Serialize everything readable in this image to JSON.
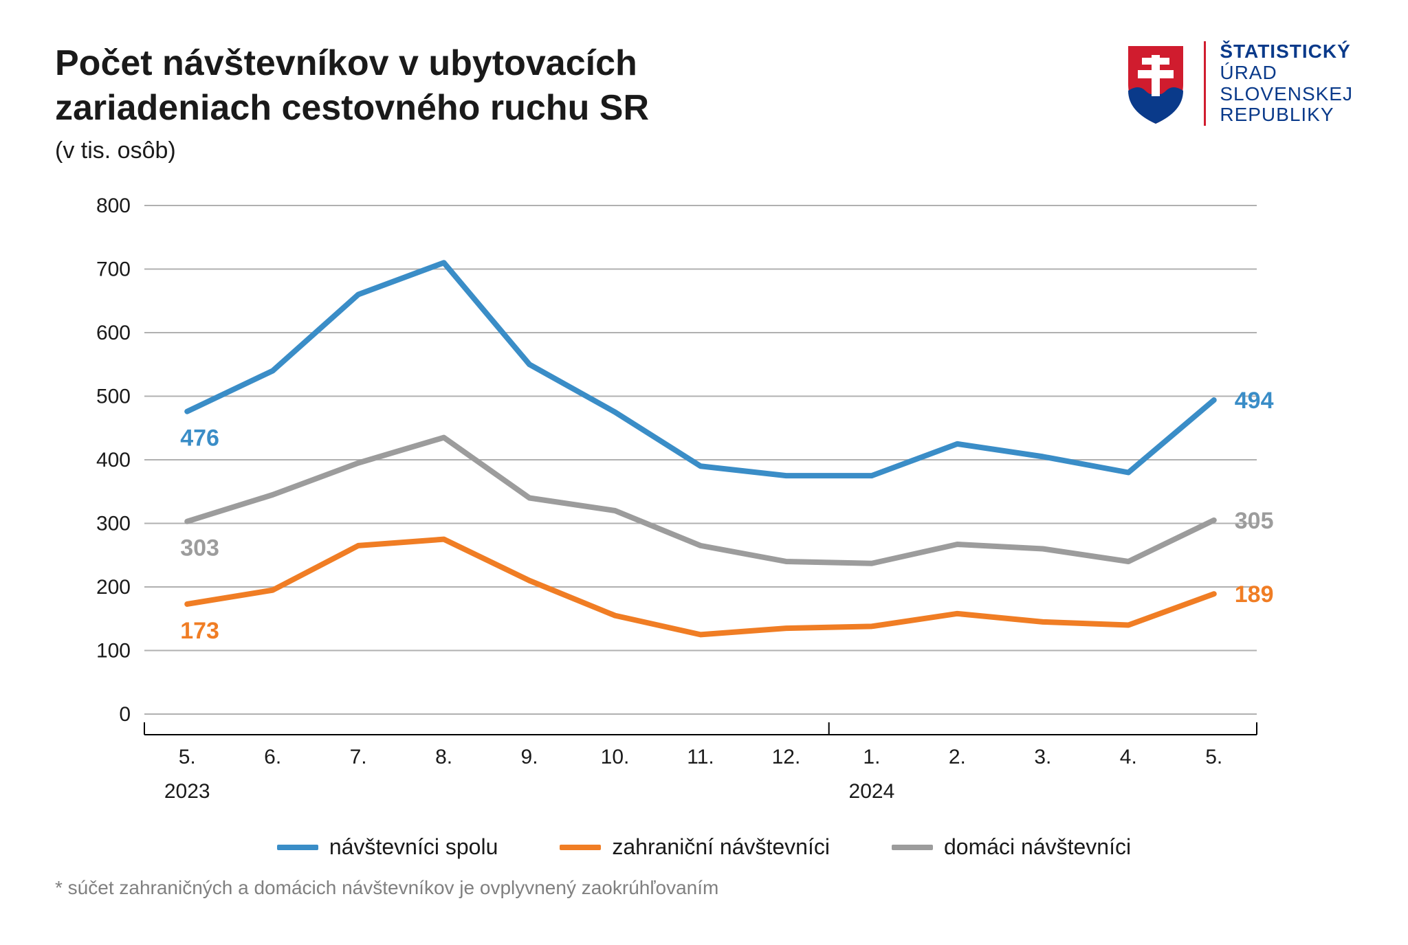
{
  "header": {
    "title_line1": "Počet návštevníkov v ubytovacích",
    "title_line2": "zariadeniach cestovného ruchu SR",
    "subtitle": "(v tis. osôb)"
  },
  "logo": {
    "line1": "ŠTATISTICKÝ",
    "line2": "ÚRAD",
    "line3": "SLOVENSKEJ",
    "line4": "REPUBLIKY",
    "shield_top_color": "#d01c2e",
    "shield_bottom_color": "#0a3a8a",
    "cross_color": "#ffffff",
    "text_color": "#0a3a8a",
    "divider_color": "#d01c2e"
  },
  "chart": {
    "type": "line",
    "background_color": "#ffffff",
    "grid_color": "#b0b0b0",
    "axis_color": "#000000",
    "ylim": [
      0,
      800
    ],
    "ytick_step": 100,
    "yticks": [
      0,
      100,
      200,
      300,
      400,
      500,
      600,
      700,
      800
    ],
    "x_categories": [
      "5.",
      "6.",
      "7.",
      "8.",
      "9.",
      "10.",
      "11.",
      "12.",
      "1.",
      "2.",
      "3.",
      "4.",
      "5."
    ],
    "x_year_groups": [
      {
        "label": "2023",
        "start_index": 0,
        "end_index": 7
      },
      {
        "label": "2024",
        "start_index": 8,
        "end_index": 12
      }
    ],
    "line_width": 8,
    "tick_fontsize": 30,
    "label_fontsize": 30,
    "value_label_fontsize": 34,
    "series": [
      {
        "key": "total",
        "label": "návštevníci spolu",
        "color": "#3a8dc7",
        "values": [
          476,
          540,
          660,
          710,
          550,
          475,
          390,
          375,
          375,
          425,
          405,
          380,
          494
        ],
        "start_label": "476",
        "end_label": "494"
      },
      {
        "key": "foreign",
        "label": "zahraniční návštevníci",
        "color": "#f07d24",
        "values": [
          173,
          195,
          265,
          275,
          210,
          155,
          125,
          135,
          138,
          158,
          145,
          140,
          189
        ],
        "start_label": "173",
        "end_label": "189"
      },
      {
        "key": "domestic",
        "label": "domáci návštevníci",
        "color": "#9c9c9c",
        "values": [
          303,
          345,
          395,
          435,
          340,
          320,
          265,
          240,
          237,
          267,
          260,
          240,
          305
        ],
        "start_label": "303",
        "end_label": "305"
      }
    ]
  },
  "legend": {
    "items": [
      {
        "label": "návštevníci spolu",
        "color": "#3a8dc7"
      },
      {
        "label": "zahraniční návštevníci",
        "color": "#f07d24"
      },
      {
        "label": "domáci návštevníci",
        "color": "#9c9c9c"
      }
    ]
  },
  "footnote": "* súčet zahraničných a domácich návštevníkov je ovplyvnený zaokrúhľovaním"
}
